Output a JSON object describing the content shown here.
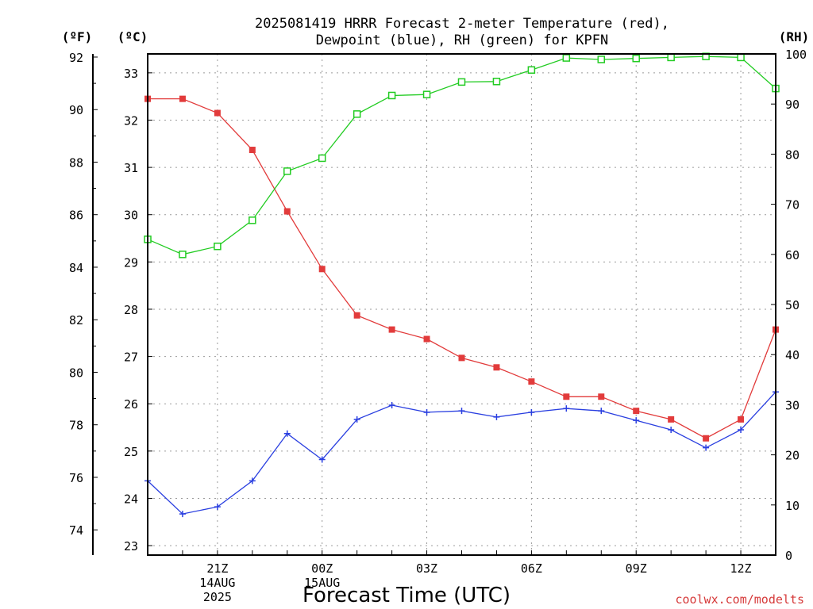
{
  "chart_data": {
    "type": "line",
    "title_lines": [
      "2025081419 HRRR Forecast 2-meter Temperature (red),",
      "Dewpoint (blue), RH (green) for KPFN"
    ],
    "xlabel": "Forecast Time (UTC)",
    "units": {
      "fahrenheit": "(ºF)",
      "celsius": "(ºC)",
      "rh": "(RH)"
    },
    "x": [
      "19Z",
      "20Z",
      "21Z",
      "22Z",
      "23Z",
      "00Z",
      "01Z",
      "02Z",
      "03Z",
      "04Z",
      "05Z",
      "06Z",
      "07Z",
      "08Z",
      "09Z",
      "10Z",
      "11Z",
      "12Z",
      "13Z"
    ],
    "x_ticks": [
      {
        "index": 2,
        "lines": [
          "21Z",
          "14AUG",
          "2025"
        ]
      },
      {
        "index": 5,
        "lines": [
          "00Z",
          "15AUG"
        ]
      },
      {
        "index": 8,
        "lines": [
          "03Z"
        ]
      },
      {
        "index": 11,
        "lines": [
          "06Z"
        ]
      },
      {
        "index": 14,
        "lines": [
          "09Z"
        ]
      },
      {
        "index": 17,
        "lines": [
          "12Z"
        ]
      }
    ],
    "axes": {
      "celsius": {
        "range": [
          22.8,
          33.4
        ],
        "ticks": [
          "23",
          "24",
          "25",
          "26",
          "27",
          "28",
          "29",
          "30",
          "31",
          "32",
          "33"
        ]
      },
      "fahrenheit": {
        "ticks": [
          "74",
          "76",
          "78",
          "80",
          "82",
          "84",
          "86",
          "88",
          "90",
          "92"
        ]
      },
      "rh": {
        "range": [
          0,
          100
        ],
        "ticks": [
          "0",
          "10",
          "20",
          "30",
          "40",
          "50",
          "60",
          "70",
          "80",
          "90",
          "100"
        ]
      }
    },
    "grid": true,
    "series": [
      {
        "name": "Temperature (red)",
        "color": "#e23b3b",
        "marker": "filled-square",
        "axis": "celsius",
        "values": [
          32.45,
          32.45,
          32.15,
          31.37,
          30.07,
          28.85,
          27.87,
          27.57,
          27.37,
          26.97,
          26.77,
          26.47,
          26.15,
          26.15,
          25.85,
          25.67,
          25.27,
          25.67,
          27.57
        ]
      },
      {
        "name": "Dewpoint (blue)",
        "color": "#2a3fe0",
        "marker": "plus",
        "axis": "celsius",
        "values": [
          24.37,
          23.67,
          23.82,
          24.37,
          25.37,
          24.82,
          25.67,
          25.97,
          25.82,
          25.85,
          25.72,
          25.82,
          25.9,
          25.85,
          25.65,
          25.45,
          25.07,
          25.45,
          26.25
        ]
      },
      {
        "name": "RH (green)",
        "color": "#22cc22",
        "marker": "open-square",
        "axis": "rh",
        "values": [
          63.0,
          60.0,
          61.6,
          66.8,
          76.6,
          79.2,
          88.0,
          91.7,
          91.9,
          94.4,
          94.5,
          96.8,
          99.2,
          98.9,
          99.1,
          99.3,
          99.5,
          99.3,
          93.1
        ]
      }
    ]
  },
  "credit": "coolwx.com/modelts"
}
